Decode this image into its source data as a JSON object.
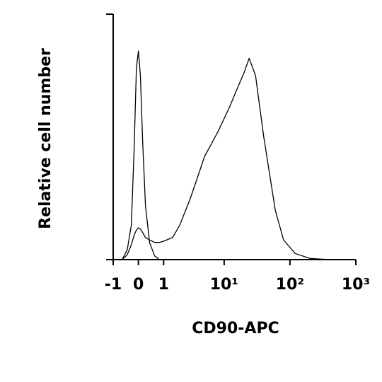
{
  "chart_data": {
    "type": "line",
    "x_label": "CD90-APC",
    "y_label": "Relative cell number",
    "xscale": "asinh",
    "xlim": [
      -1,
      1000
    ],
    "xticks": [
      -1,
      0,
      1,
      {
        "value": 10,
        "label": "10¹"
      },
      {
        "value": 100,
        "label": "10²"
      },
      {
        "value": 1000,
        "label": "10³"
      }
    ],
    "ylim": [
      0,
      100
    ],
    "series": [
      {
        "color": "#000000",
        "x": [
          -0.6,
          -0.4,
          -0.25,
          -0.15,
          -0.07,
          0,
          0.07,
          0.15,
          0.25,
          0.4,
          0.6,
          0.8
        ],
        "values": [
          0,
          4,
          14,
          45,
          78,
          85,
          75,
          48,
          22,
          7,
          1.5,
          0
        ]
      },
      {
        "color": "#000000",
        "x": [
          -0.6,
          -0.4,
          -0.25,
          -0.15,
          -0.07,
          0,
          0.07,
          0.15,
          0.25,
          0.4,
          0.6,
          0.8,
          1,
          1.5,
          2,
          3,
          5,
          8,
          12,
          16,
          20,
          24,
          30,
          40,
          60,
          80,
          120,
          200,
          400
        ],
        "values": [
          0,
          2,
          6,
          10,
          12,
          13,
          12.5,
          11,
          9,
          8,
          7,
          7,
          7.5,
          9,
          14,
          25,
          42,
          52,
          62,
          70,
          76,
          82,
          75,
          50,
          20,
          8,
          2.5,
          0.5,
          0
        ]
      }
    ]
  }
}
